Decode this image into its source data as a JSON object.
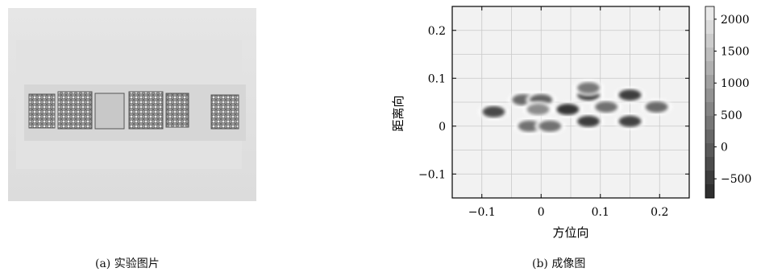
{
  "figure": {
    "panel_a": {
      "caption": "(a) 实验图片"
    },
    "panel_b": {
      "caption": "(b) 成像图"
    }
  },
  "chart_data": {
    "type": "heatmap",
    "xlabel": "方位向",
    "ylabel": "距离向",
    "xlim": [
      -0.15,
      0.25
    ],
    "ylim": [
      -0.15,
      0.25
    ],
    "x_ticks": [
      -0.1,
      0,
      0.1,
      0.2
    ],
    "x_tick_labels": [
      "−0.1",
      "0",
      "0.1",
      "0.2"
    ],
    "y_ticks": [
      -0.1,
      0,
      0.1,
      0.2
    ],
    "y_tick_labels": [
      "−0.1",
      "0",
      "0.1",
      "0.2"
    ],
    "grid": true,
    "colorbar": {
      "range": [
        -800,
        2200
      ],
      "ticks": [
        2000,
        1500,
        1000,
        500,
        0,
        -500
      ],
      "tick_labels": [
        "2000",
        "1500",
        "1000",
        "500",
        "0",
        "−500"
      ]
    },
    "blobs": [
      {
        "x": -0.08,
        "y": 0.03,
        "value": -300
      },
      {
        "x": -0.03,
        "y": 0.055,
        "value": 200
      },
      {
        "x": 0.0,
        "y": 0.055,
        "value": 100
      },
      {
        "x": -0.02,
        "y": 0.0,
        "value": 300
      },
      {
        "x": 0.015,
        "y": 0.0,
        "value": 300
      },
      {
        "x": 0.045,
        "y": 0.035,
        "value": -600
      },
      {
        "x": 0.08,
        "y": 0.065,
        "value": -400
      },
      {
        "x": 0.08,
        "y": 0.08,
        "value": 400
      },
      {
        "x": 0.08,
        "y": 0.01,
        "value": -500
      },
      {
        "x": 0.11,
        "y": 0.04,
        "value": 300
      },
      {
        "x": 0.15,
        "y": 0.065,
        "value": -500
      },
      {
        "x": 0.15,
        "y": 0.01,
        "value": -400
      },
      {
        "x": 0.195,
        "y": 0.04,
        "value": 200
      },
      {
        "x": -0.005,
        "y": 0.035,
        "value": 700
      }
    ]
  }
}
